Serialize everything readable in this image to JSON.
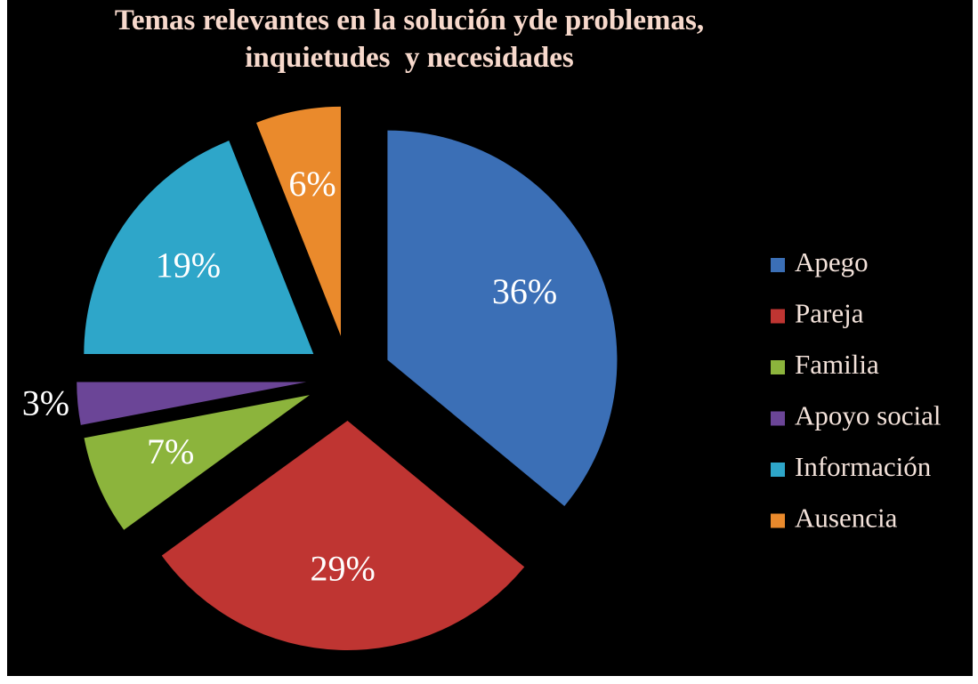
{
  "chart_data": {
    "type": "pie",
    "title": "Temas relevantes en la solución yde problemas, inquietudes  y necesidades",
    "categories": [
      "Apego",
      "Pareja",
      "Familia",
      "Apoyo social",
      "Información",
      "Ausencia"
    ],
    "values": [
      36,
      29,
      7,
      3,
      19,
      6
    ],
    "value_labels": [
      "36%",
      "29%",
      "7%",
      "3%",
      "19%",
      "6%"
    ],
    "colors": [
      "#3b6fb6",
      "#bf3532",
      "#8cb43c",
      "#6b4597",
      "#2ea6c9",
      "#ea8a2c"
    ],
    "legend": "right"
  }
}
